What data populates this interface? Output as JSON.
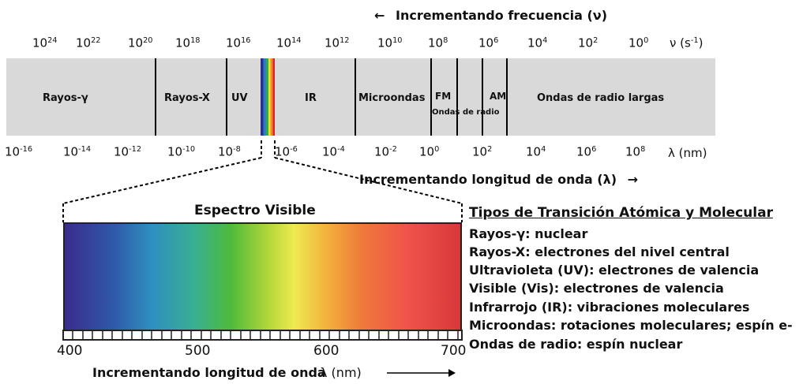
{
  "frequency_arrow_label": "Incrementando frecuencia (ν)",
  "frequency_arrow_glyph": "←",
  "frequency_ticks": [
    {
      "base": "10",
      "exp": "24"
    },
    {
      "base": "10",
      "exp": "22"
    },
    {
      "base": "10",
      "exp": "20"
    },
    {
      "base": "10",
      "exp": "18"
    },
    {
      "base": "10",
      "exp": "16"
    },
    {
      "base": "10",
      "exp": "14"
    },
    {
      "base": "10",
      "exp": "12"
    },
    {
      "base": "10",
      "exp": "10"
    },
    {
      "base": "10",
      "exp": "8"
    },
    {
      "base": "10",
      "exp": "6"
    },
    {
      "base": "10",
      "exp": "4"
    },
    {
      "base": "10",
      "exp": "2"
    },
    {
      "base": "10",
      "exp": "0"
    }
  ],
  "frequency_unit": {
    "base": "ν (s",
    "exp": "-1",
    "tail": ")"
  },
  "bands": {
    "gamma": "Rayos-γ",
    "xray": "Rayos-X",
    "uv": "UV",
    "ir": "IR",
    "microwave": "Microondas",
    "fm": "FM",
    "radio": "Ondas de radio",
    "am": "AM",
    "long_radio": "Ondas de radio largas"
  },
  "wavelength_ticks": [
    {
      "base": "10",
      "exp": "-16"
    },
    {
      "base": "10",
      "exp": "-14"
    },
    {
      "base": "10",
      "exp": "-12"
    },
    {
      "base": "10",
      "exp": "-10"
    },
    {
      "base": "10",
      "exp": "-8"
    },
    {
      "base": "10",
      "exp": "-6"
    },
    {
      "base": "10",
      "exp": "-4"
    },
    {
      "base": "10",
      "exp": "-2"
    },
    {
      "base": "10",
      "exp": "0"
    },
    {
      "base": "10",
      "exp": "2"
    },
    {
      "base": "10",
      "exp": "4"
    },
    {
      "base": "10",
      "exp": "6"
    },
    {
      "base": "10",
      "exp": "8"
    }
  ],
  "wavelength_unit": "λ (nm)",
  "wavelength_arrow_label": "Incrementando longitud de onda (λ)",
  "wavelength_arrow_glyph": "→",
  "visible": {
    "title": "Espectro Visible",
    "ticks": [
      "400",
      "500",
      "600",
      "700"
    ],
    "axis_label": "Incrementando longitud de onda",
    "axis_unit": "λ (nm)"
  },
  "legend": {
    "title": "Tipos de Transición Atómica y Molecular",
    "items": [
      "Rayos-γ: nuclear",
      "Rayos-X: electrones del nivel central",
      "Ultravioleta (UV): electrones de valencia",
      "Visible (Vis): electrones de valencia",
      "Infrarrojo (IR): vibraciones moleculares",
      "Microondas: rotaciones moleculares; espín e-",
      "Ondas de radio: espín nuclear"
    ]
  },
  "colors": {
    "band_fill": "#d9d9d9",
    "divider": "#000000",
    "visible_gradient": [
      "#3a2c8c",
      "#2f57a8",
      "#2f8fc0",
      "#39b090",
      "#4fba3a",
      "#b7d83a",
      "#eeea52",
      "#f2b33c",
      "#ef7a3a",
      "#f0544a",
      "#d8383a"
    ]
  }
}
